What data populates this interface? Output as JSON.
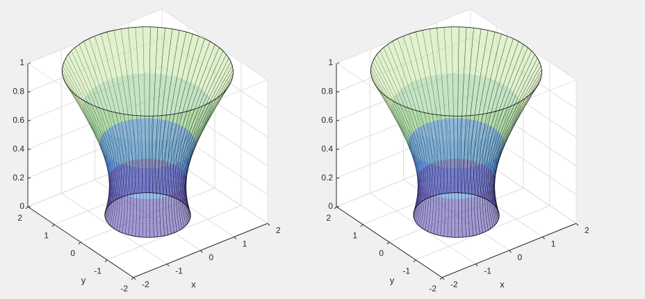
{
  "chart_data": [
    {
      "type": "surface",
      "xlabel": "x",
      "ylabel": "y",
      "xlim": [
        -2,
        2
      ],
      "ylim": [
        -2,
        2
      ],
      "zlim": [
        0,
        1
      ],
      "xticks": [
        -2,
        -1,
        0,
        1,
        2
      ],
      "yticks": [
        -2,
        -1,
        0,
        1,
        2
      ],
      "zticks": [
        0,
        0.2,
        0.4,
        0.6,
        0.8,
        1
      ],
      "grid": true
    },
    {
      "type": "surface",
      "xlabel": "x",
      "ylabel": "y",
      "xlim": [
        -2,
        2
      ],
      "ylim": [
        -2,
        2
      ],
      "zlim": [
        0,
        1
      ],
      "xticks": [
        -2,
        -1,
        0,
        1,
        2
      ],
      "yticks": [
        -2,
        -1,
        0,
        1,
        2
      ],
      "zticks": [
        0,
        0.2,
        0.4,
        0.6,
        0.8,
        1
      ],
      "grid": true
    }
  ]
}
